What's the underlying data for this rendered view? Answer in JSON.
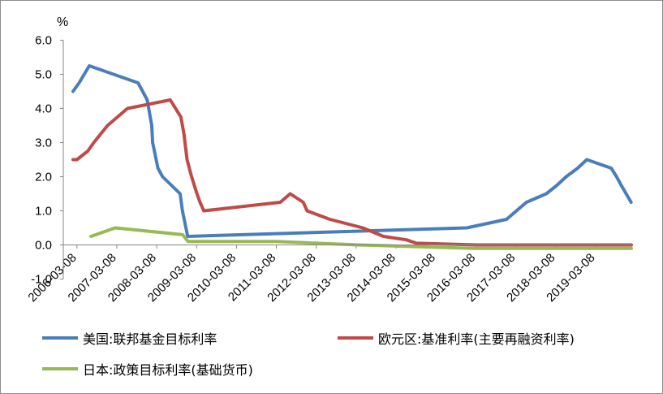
{
  "chart_data": {
    "type": "line",
    "ylabel": "%",
    "ylim": [
      -1.0,
      6.0
    ],
    "yticks": [
      "-1.0",
      "0.0",
      "1.0",
      "2.0",
      "3.0",
      "4.0",
      "5.0",
      "6.0"
    ],
    "xticks": [
      "2006-03-08",
      "2007-03-08",
      "2008-03-08",
      "2009-03-08",
      "2010-03-08",
      "2011-03-08",
      "2012-03-08",
      "2013-03-08",
      "2014-03-08",
      "2015-03-08",
      "2016-03-08",
      "2017-03-08",
      "2018-03-08",
      "2019-03-08"
    ],
    "grid": false,
    "legend_position": "bottom",
    "series": [
      {
        "name": "美国:联邦基金目标利率",
        "color": "#4a7ebb",
        "points": [
          [
            "2006-01-31",
            4.5
          ],
          [
            "2006-03-28",
            4.75
          ],
          [
            "2006-06-29",
            5.25
          ],
          [
            "2007-09-18",
            4.75
          ],
          [
            "2007-10-31",
            4.5
          ],
          [
            "2007-12-11",
            4.25
          ],
          [
            "2008-01-22",
            3.5
          ],
          [
            "2008-01-30",
            3.0
          ],
          [
            "2008-03-18",
            2.25
          ],
          [
            "2008-04-30",
            2.0
          ],
          [
            "2008-10-08",
            1.5
          ],
          [
            "2008-10-29",
            1.0
          ],
          [
            "2008-12-16",
            0.25
          ],
          [
            "2015-12-16",
            0.5
          ],
          [
            "2016-12-14",
            0.75
          ],
          [
            "2017-03-15",
            1.0
          ],
          [
            "2017-06-14",
            1.25
          ],
          [
            "2017-12-13",
            1.5
          ],
          [
            "2018-03-21",
            1.75
          ],
          [
            "2018-06-13",
            2.0
          ],
          [
            "2018-09-26",
            2.25
          ],
          [
            "2018-12-19",
            2.5
          ],
          [
            "2019-07-31",
            2.25
          ],
          [
            "2019-09-18",
            2.0
          ],
          [
            "2019-10-30",
            1.75
          ],
          [
            "2020-01-29",
            1.25
          ]
        ]
      },
      {
        "name": "欧元区:基准利率(主要再融资利率)",
        "color": "#be4b48",
        "points": [
          [
            "2006-01-31",
            2.5
          ],
          [
            "2006-03-08",
            2.5
          ],
          [
            "2006-06-15",
            2.75
          ],
          [
            "2006-08-09",
            3.0
          ],
          [
            "2006-10-11",
            3.25
          ],
          [
            "2006-12-13",
            3.5
          ],
          [
            "2007-03-14",
            3.75
          ],
          [
            "2007-06-13",
            4.0
          ],
          [
            "2008-07-09",
            4.25
          ],
          [
            "2008-10-15",
            3.75
          ],
          [
            "2008-11-12",
            3.25
          ],
          [
            "2008-12-10",
            2.5
          ],
          [
            "2009-01-21",
            2.0
          ],
          [
            "2009-03-11",
            1.5
          ],
          [
            "2009-04-08",
            1.25
          ],
          [
            "2009-05-13",
            1.0
          ],
          [
            "2011-04-13",
            1.25
          ],
          [
            "2011-07-13",
            1.5
          ],
          [
            "2011-11-09",
            1.25
          ],
          [
            "2011-12-14",
            1.0
          ],
          [
            "2012-07-11",
            0.75
          ],
          [
            "2013-05-08",
            0.5
          ],
          [
            "2013-11-13",
            0.25
          ],
          [
            "2014-06-11",
            0.15
          ],
          [
            "2014-09-10",
            0.05
          ],
          [
            "2016-03-16",
            0.0
          ],
          [
            "2020-01-31",
            0.0
          ]
        ]
      },
      {
        "name": "日本:政策目标利率(基础货币)",
        "color": "#98b954",
        "points": [
          [
            "2006-07-14",
            0.25
          ],
          [
            "2007-02-21",
            0.5
          ],
          [
            "2008-10-31",
            0.3
          ],
          [
            "2008-12-19",
            0.1
          ],
          [
            "2011-03-08",
            0.1
          ],
          [
            "2013-04-04",
            0.0
          ],
          [
            "2016-02-16",
            -0.1
          ],
          [
            "2020-01-31",
            -0.1
          ]
        ]
      }
    ]
  }
}
